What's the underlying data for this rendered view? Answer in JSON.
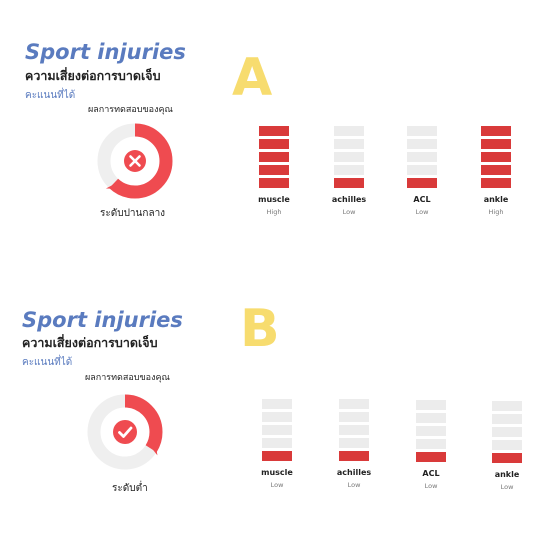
{
  "colors": {
    "filled": "#d93a3a",
    "empty": "#ececec",
    "title": "#5a7bbf",
    "letter": "#f7dc6f",
    "gauge_bg": "#efefef",
    "gauge_fill": "#ef4b50"
  },
  "panels": [
    {
      "letter": "A",
      "title": "Sport injuries",
      "subtitle": "ความเสี่ยงต่อการบาดเจ็บ",
      "score_label": "คะแนนที่ได้",
      "result_label": "ผลการทดสอบของคุณ",
      "level_label": "ระดับปานกลาง",
      "gauge": {
        "icon": "x-icon",
        "fraction": 0.62
      },
      "bars": [
        {
          "name": "muscle",
          "level": "High",
          "filled": 5,
          "total": 5
        },
        {
          "name": "achilles",
          "level": "Low",
          "filled": 1,
          "total": 5
        },
        {
          "name": "ACL",
          "level": "Low",
          "filled": 1,
          "total": 5
        },
        {
          "name": "ankle",
          "level": "High",
          "filled": 5,
          "total": 5
        }
      ]
    },
    {
      "letter": "B",
      "title": "Sport injuries",
      "subtitle": "ความเสี่ยงต่อการบาดเจ็บ",
      "score_label": "คะแนนที่ได้",
      "result_label": "ผลการทดสอบของคุณ",
      "level_label": "ระดับต่ำ",
      "gauge": {
        "icon": "check-icon",
        "fraction": 0.34
      },
      "bars": [
        {
          "name": "muscle",
          "level": "Low",
          "filled": 1,
          "total": 5
        },
        {
          "name": "achilles",
          "level": "Low",
          "filled": 1,
          "total": 5
        },
        {
          "name": "ACL",
          "level": "Low",
          "filled": 1,
          "total": 5
        },
        {
          "name": "ankle",
          "level": "Low",
          "filled": 1,
          "total": 5
        }
      ]
    }
  ]
}
